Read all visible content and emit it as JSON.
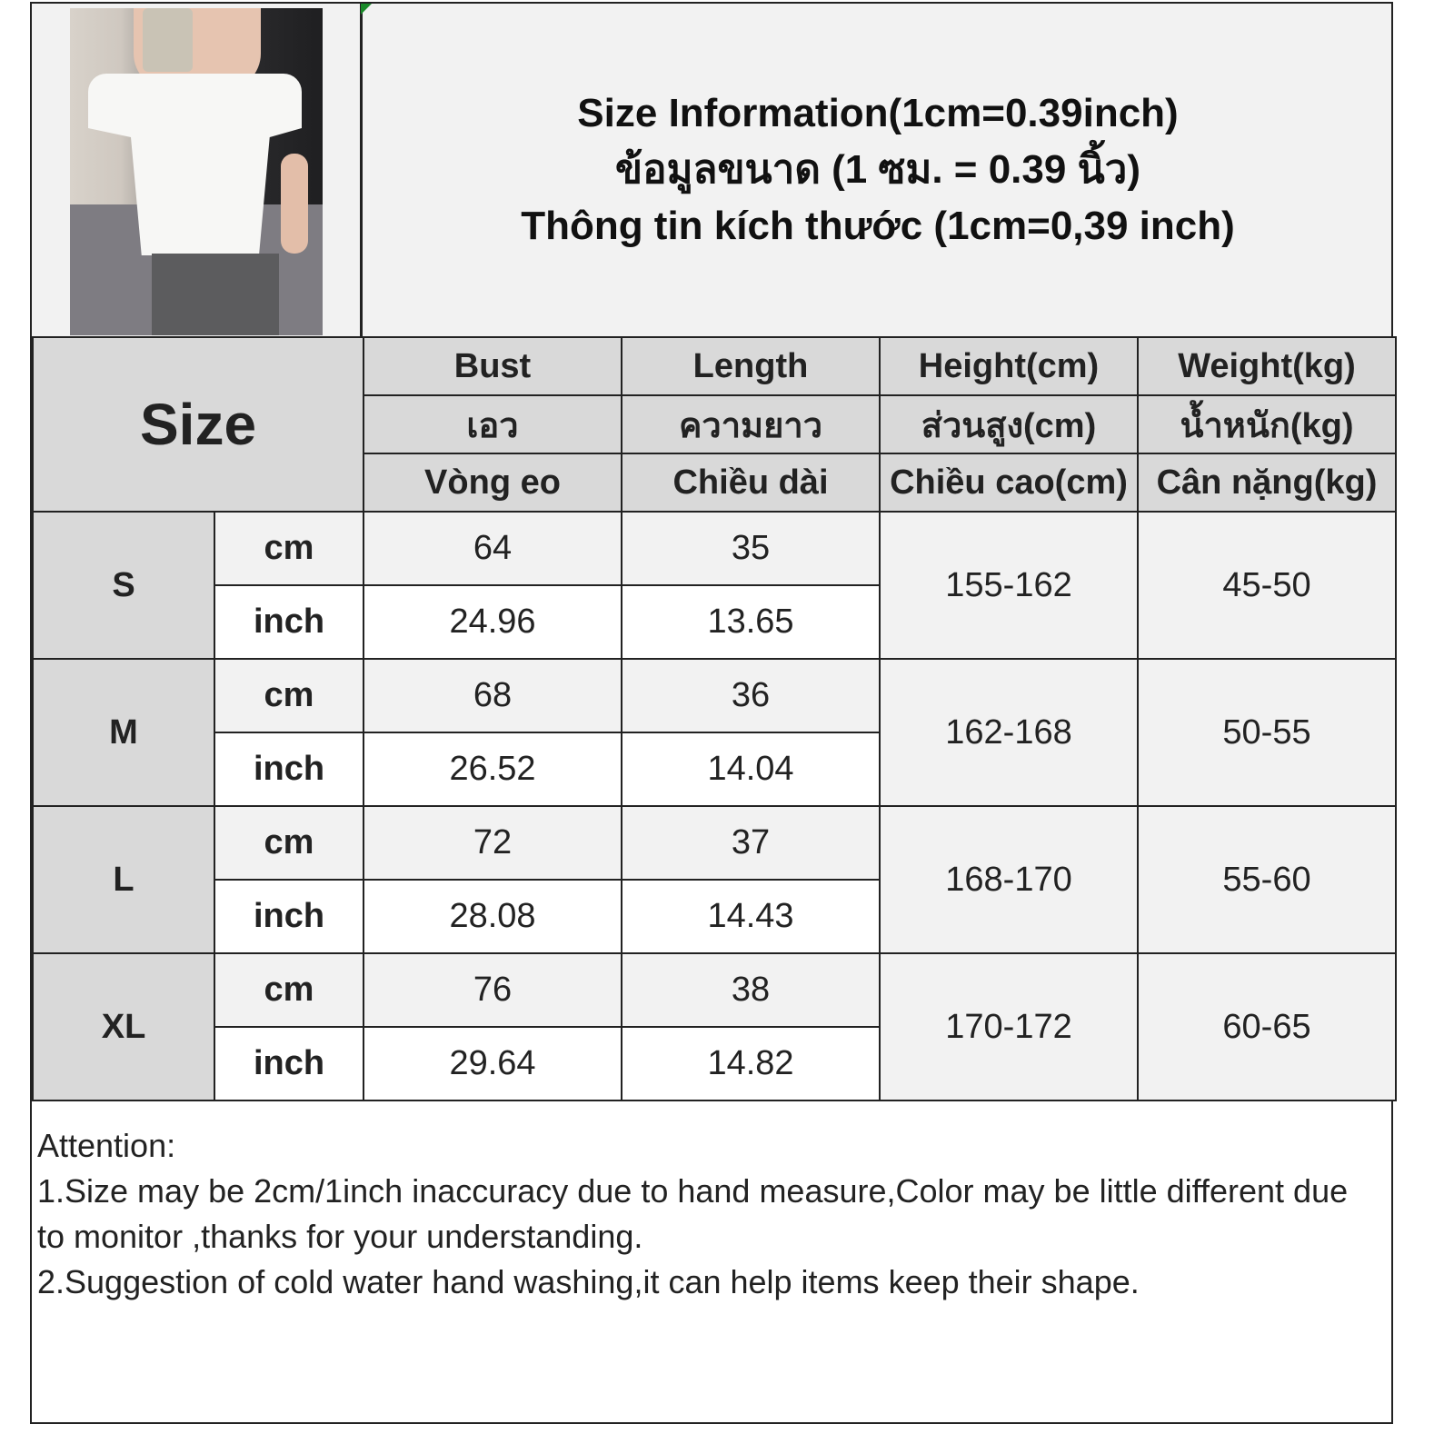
{
  "title_lines": [
    "Size Information(1cm=0.39inch)",
    "ข้อมูลขนาด (1 ซม. = 0.39 นิ้ว)",
    "Thông tin kích thước (1cm=0,39 inch)"
  ],
  "size_label": "Size",
  "headers": [
    [
      "Bust",
      "เอว",
      "Vòng eo"
    ],
    [
      "Length",
      "ความยาว",
      "Chiều dài"
    ],
    [
      "Height(cm)",
      "ส่วนสูง(cm)",
      "Chiều cao(cm)"
    ],
    [
      "Weight(kg)",
      "น้ำหนัก(kg)",
      "Cân nặng(kg)"
    ]
  ],
  "units": [
    "cm",
    "inch"
  ],
  "rows": [
    {
      "size": "S",
      "bust_cm": "64",
      "bust_inch": "24.96",
      "length_cm": "35",
      "length_inch": "13.65",
      "height": "155-162",
      "weight": "45-50"
    },
    {
      "size": "M",
      "bust_cm": "68",
      "bust_inch": "26.52",
      "length_cm": "36",
      "length_inch": "14.04",
      "height": "162-168",
      "weight": "50-55"
    },
    {
      "size": "L",
      "bust_cm": "72",
      "bust_inch": "28.08",
      "length_cm": "37",
      "length_inch": "14.43",
      "height": "168-170",
      "weight": "55-60"
    },
    {
      "size": "XL",
      "bust_cm": "76",
      "bust_inch": "29.64",
      "length_cm": "38",
      "length_inch": "14.82",
      "height": "170-172",
      "weight": "60-65"
    }
  ],
  "attention": {
    "heading": "Attention:",
    "items": [
      "1.Size may be 2cm/1inch inaccuracy due to hand measure,Color may be little different due to monitor ,thanks for your understanding.",
      "2.Suggestion of cold water hand washing,it can help items keep their shape."
    ]
  }
}
